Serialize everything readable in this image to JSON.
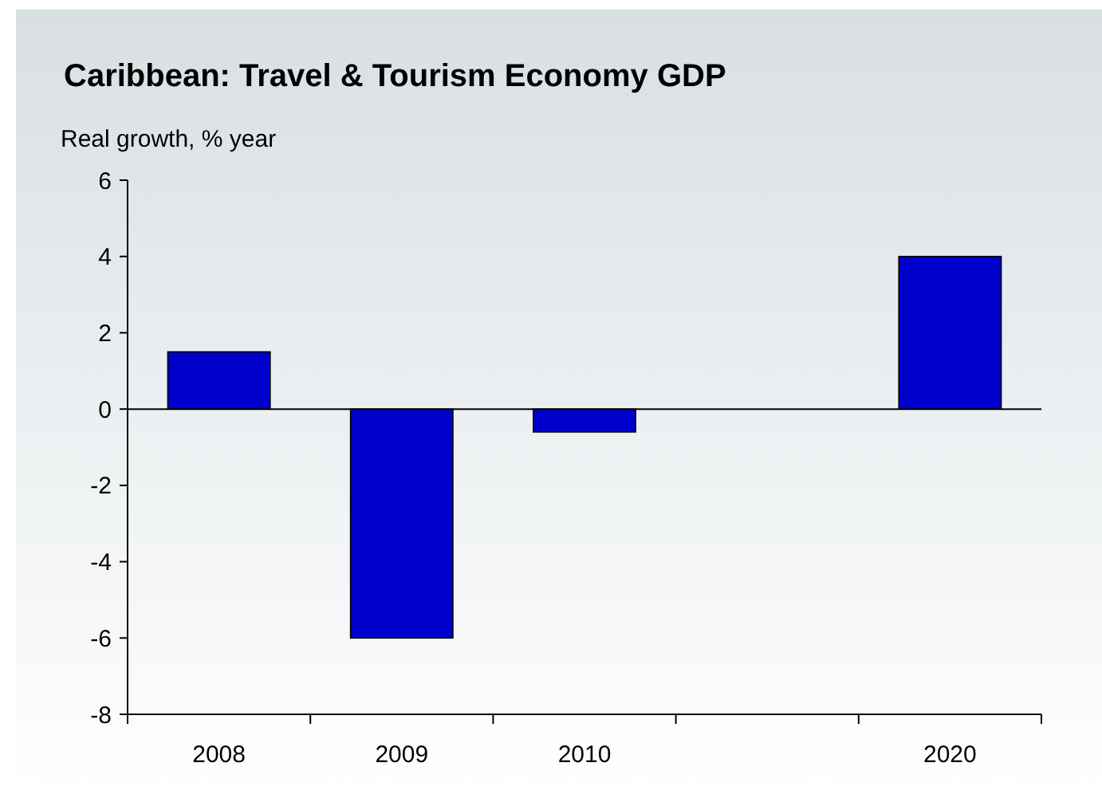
{
  "chart_data": {
    "type": "bar",
    "title": "Caribbean: Travel & Tourism Economy GDP",
    "ylabel": "Real growth, % year",
    "categories": [
      "2008",
      "2009",
      "2010",
      null,
      "2020"
    ],
    "values": [
      1.5,
      -6.0,
      -0.6,
      null,
      4.0
    ],
    "color": "#0000cc",
    "ylim": [
      -8,
      6
    ],
    "yticks": [
      -8,
      -6,
      -4,
      -2,
      0,
      2,
      4,
      6
    ]
  }
}
